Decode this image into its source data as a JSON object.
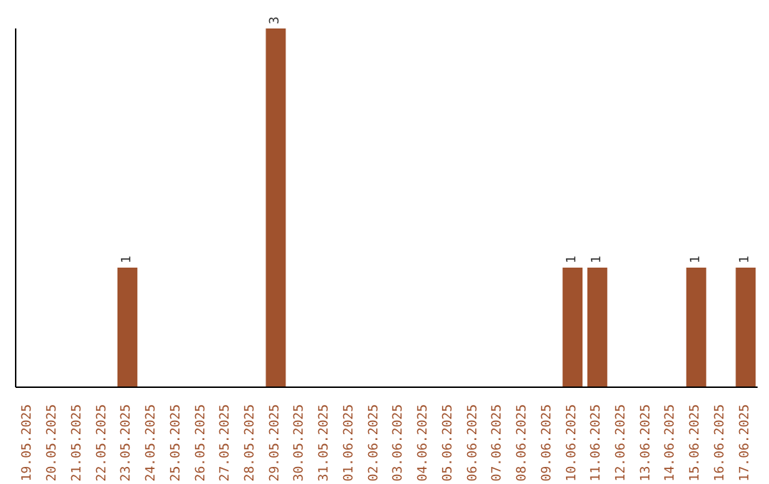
{
  "chart_data": {
    "type": "bar",
    "categories": [
      "19.05.2025",
      "20.05.2025",
      "21.05.2025",
      "22.05.2025",
      "23.05.2025",
      "24.05.2025",
      "25.05.2025",
      "26.05.2025",
      "27.05.2025",
      "28.05.2025",
      "29.05.2025",
      "30.05.2025",
      "31.05.2025",
      "01.06.2025",
      "02.06.2025",
      "03.06.2025",
      "04.06.2025",
      "05.06.2025",
      "06.06.2025",
      "07.06.2025",
      "08.06.2025",
      "09.06.2025",
      "10.06.2025",
      "11.06.2025",
      "12.06.2025",
      "13.06.2025",
      "14.06.2025",
      "15.06.2025",
      "16.06.2025",
      "17.06.2025"
    ],
    "values": [
      0,
      0,
      0,
      0,
      1,
      0,
      0,
      0,
      0,
      0,
      3,
      0,
      0,
      0,
      0,
      0,
      0,
      0,
      0,
      0,
      0,
      0,
      1,
      1,
      0,
      0,
      0,
      1,
      0,
      1
    ],
    "value_labels": [
      null,
      null,
      null,
      null,
      "1",
      null,
      null,
      null,
      null,
      null,
      "3",
      null,
      null,
      null,
      null,
      null,
      null,
      null,
      null,
      null,
      null,
      null,
      "1",
      "1",
      null,
      null,
      null,
      "1",
      null,
      "1"
    ],
    "color": "#a0522d"
  }
}
